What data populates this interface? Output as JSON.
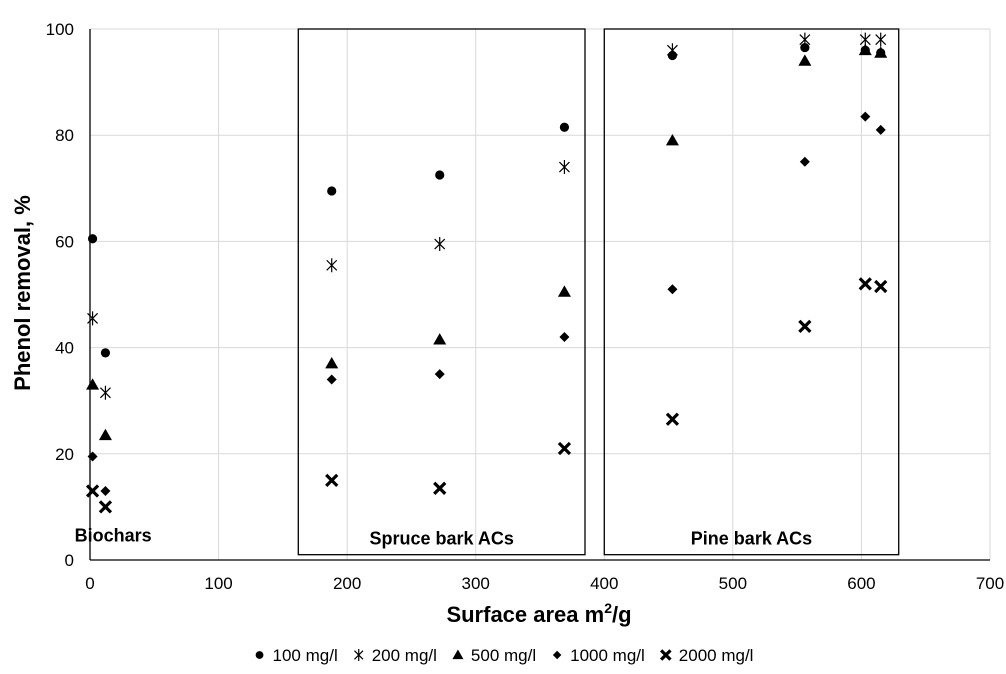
{
  "chart_data": {
    "type": "scatter",
    "title": "",
    "xlabel": "Surface area m",
    "xlabel_sup": "2",
    "xlabel_suffix": "/g",
    "ylabel": "Phenol removal, %",
    "xlim": [
      0,
      700
    ],
    "ylim": [
      0,
      100
    ],
    "xticks": [
      0,
      100,
      200,
      300,
      400,
      500,
      600,
      700
    ],
    "yticks": [
      0,
      20,
      40,
      60,
      80,
      100
    ],
    "grid": true,
    "legend_position": "bottom",
    "colors": {
      "marker": "#000000",
      "grid": "#d9d9d9",
      "frame": "#000000"
    },
    "regions": [
      {
        "name": "spruce-bark-region",
        "label": "Spruce bark ACs",
        "x_range": [
          162,
          385
        ],
        "y_range": [
          1,
          100
        ]
      },
      {
        "name": "pine-bark-region",
        "label": "Pine bark ACs",
        "x_range": [
          400,
          629
        ],
        "y_range": [
          1,
          100
        ]
      }
    ],
    "annotations": [
      {
        "text": "Biochars",
        "x": 18,
        "y": 3.5
      }
    ],
    "series": [
      {
        "name": "100 mg/l",
        "marker": "circle",
        "points": [
          [
            2,
            60.5
          ],
          [
            12,
            39
          ],
          [
            188,
            69.5
          ],
          [
            272,
            72.5
          ],
          [
            369,
            81.5
          ],
          [
            453,
            95
          ],
          [
            556,
            96.5
          ],
          [
            603,
            96
          ],
          [
            615,
            95.5
          ]
        ]
      },
      {
        "name": "200 mg/l",
        "marker": "asterisk",
        "points": [
          [
            2,
            45.5
          ],
          [
            12,
            31.5
          ],
          [
            188,
            55.5
          ],
          [
            272,
            59.5
          ],
          [
            369,
            74
          ],
          [
            453,
            96
          ],
          [
            556,
            98
          ],
          [
            603,
            98
          ],
          [
            615,
            98
          ]
        ]
      },
      {
        "name": "500 mg/l",
        "marker": "triangle",
        "points": [
          [
            2,
            33
          ],
          [
            12,
            23.5
          ],
          [
            188,
            37
          ],
          [
            272,
            41.5
          ],
          [
            369,
            50.5
          ],
          [
            453,
            79
          ],
          [
            556,
            94
          ],
          [
            603,
            96
          ],
          [
            615,
            95.5
          ]
        ]
      },
      {
        "name": "1000 mg/l",
        "marker": "diamond",
        "points": [
          [
            2,
            19.5
          ],
          [
            12,
            13
          ],
          [
            188,
            34
          ],
          [
            272,
            35
          ],
          [
            369,
            42
          ],
          [
            453,
            51
          ],
          [
            556,
            75
          ],
          [
            603,
            83.5
          ],
          [
            615,
            81
          ]
        ]
      },
      {
        "name": "2000 mg/l",
        "marker": "cross",
        "points": [
          [
            2,
            13
          ],
          [
            12,
            10
          ],
          [
            188,
            15
          ],
          [
            272,
            13.5
          ],
          [
            369,
            21
          ],
          [
            453,
            26.5
          ],
          [
            556,
            44
          ],
          [
            603,
            52
          ],
          [
            615,
            51.5
          ]
        ]
      }
    ]
  }
}
